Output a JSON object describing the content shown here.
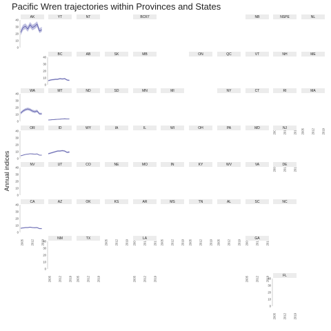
{
  "chart_data": {
    "type": "line",
    "title": "Pacific Wren trajectories within Provinces and States",
    "ylabel": "Annual indices",
    "ylim": [
      0,
      40
    ],
    "yticks": [
      0,
      10,
      20,
      30,
      40
    ],
    "xticks": [
      2005,
      2012,
      2019
    ],
    "series_color": "#5a5aa8",
    "band_color": "#8a8cc8",
    "panels": [
      {
        "name": "AK",
        "values": [
          22,
          29,
          31,
          27,
          33,
          29,
          31,
          34,
          24,
          26
        ],
        "lower": [
          18,
          25,
          27,
          23,
          29,
          25,
          27,
          30,
          21,
          23
        ],
        "upper": [
          26,
          33,
          35,
          31,
          37,
          33,
          35,
          38,
          28,
          30
        ]
      },
      {
        "name": "YT"
      },
      {
        "name": "NT"
      },
      {
        "name": "BCR7"
      },
      {
        "name": "NB"
      },
      {
        "name": "NSPE"
      },
      {
        "name": "NL"
      },
      {
        "name": "BC",
        "values": [
          6,
          7,
          7.5,
          8,
          8,
          9,
          8.5,
          9,
          7,
          6.5
        ],
        "lower": [
          5,
          6,
          6.5,
          7,
          7,
          8,
          7.5,
          8,
          6,
          5.5
        ],
        "upper": [
          7,
          8,
          8.5,
          9,
          9,
          10,
          9.5,
          10,
          8,
          7.5
        ]
      },
      {
        "name": "AB"
      },
      {
        "name": "SK"
      },
      {
        "name": "MB"
      },
      {
        "name": "ON"
      },
      {
        "name": "QC"
      },
      {
        "name": "VT"
      },
      {
        "name": "NH"
      },
      {
        "name": "ME"
      },
      {
        "name": "WA",
        "values": [
          12,
          15,
          17,
          18,
          17,
          15,
          14,
          15,
          11,
          11
        ],
        "lower": [
          10,
          13,
          15,
          16,
          15,
          13,
          12,
          13,
          9.5,
          9.5
        ],
        "upper": [
          14,
          17,
          19,
          20,
          19,
          17,
          16,
          17,
          12.5,
          12.5
        ]
      },
      {
        "name": "MT",
        "values": [
          2,
          2.2,
          2.5,
          2.8,
          3,
          3.2,
          3.5,
          3.8,
          3.5,
          3.6
        ],
        "lower": [
          1.5,
          1.7,
          2,
          2.3,
          2.5,
          2.7,
          3,
          3.3,
          3,
          3.1
        ],
        "upper": [
          2.5,
          2.7,
          3,
          3.3,
          3.5,
          3.7,
          4,
          4.3,
          4,
          4.1
        ]
      },
      {
        "name": "ND"
      },
      {
        "name": "SD"
      },
      {
        "name": "MN"
      },
      {
        "name": "MI"
      },
      {
        "name": "NY"
      },
      {
        "name": "CT"
      },
      {
        "name": "RI"
      },
      {
        "name": "MA"
      },
      {
        "name": "OR",
        "values": [
          4,
          5,
          6,
          6.5,
          7,
          6.8,
          6.5,
          6.8,
          5,
          5
        ],
        "lower": [
          3.5,
          4.5,
          5.5,
          6,
          6.5,
          6.3,
          6,
          6.3,
          4.5,
          4.5
        ],
        "upper": [
          4.5,
          5.5,
          6.5,
          7,
          7.5,
          7.3,
          7,
          7.3,
          5.5,
          5.5
        ]
      },
      {
        "name": "ID",
        "values": [
          7,
          8,
          9,
          10,
          11,
          11,
          11.5,
          11,
          9,
          9.5
        ],
        "lower": [
          6,
          7,
          8,
          9,
          10,
          10,
          10.5,
          10,
          8,
          8
        ],
        "upper": [
          8,
          9,
          10,
          11,
          12,
          12,
          12.5,
          12,
          10,
          11
        ]
      },
      {
        "name": "WY"
      },
      {
        "name": "IA"
      },
      {
        "name": "IL"
      },
      {
        "name": "WI"
      },
      {
        "name": "OH"
      },
      {
        "name": "PA"
      },
      {
        "name": "MD"
      },
      {
        "name": "NJ"
      },
      {
        "name": "NV"
      },
      {
        "name": "UT"
      },
      {
        "name": "CO"
      },
      {
        "name": "NE"
      },
      {
        "name": "MO"
      },
      {
        "name": "IN"
      },
      {
        "name": "KY"
      },
      {
        "name": "WV"
      },
      {
        "name": "VA"
      },
      {
        "name": "DE"
      },
      {
        "name": "CA",
        "values": [
          6,
          6.5,
          7,
          7,
          7.5,
          7,
          6.8,
          7,
          5.5,
          5.5
        ],
        "lower": [
          5.3,
          5.8,
          6.3,
          6.3,
          6.8,
          6.3,
          6.1,
          6.3,
          4.8,
          4.8
        ],
        "upper": [
          6.7,
          7.2,
          7.7,
          7.7,
          8.2,
          7.7,
          7.5,
          7.7,
          6.2,
          6.2
        ]
      },
      {
        "name": "AZ"
      },
      {
        "name": "OK"
      },
      {
        "name": "KS"
      },
      {
        "name": "AR"
      },
      {
        "name": "MS"
      },
      {
        "name": "TN"
      },
      {
        "name": "AL"
      },
      {
        "name": "SC"
      },
      {
        "name": "NC"
      },
      {
        "name": "NM"
      },
      {
        "name": "TX"
      },
      {
        "name": "LA"
      },
      {
        "name": "GA"
      },
      {
        "name": "FL"
      }
    ]
  }
}
